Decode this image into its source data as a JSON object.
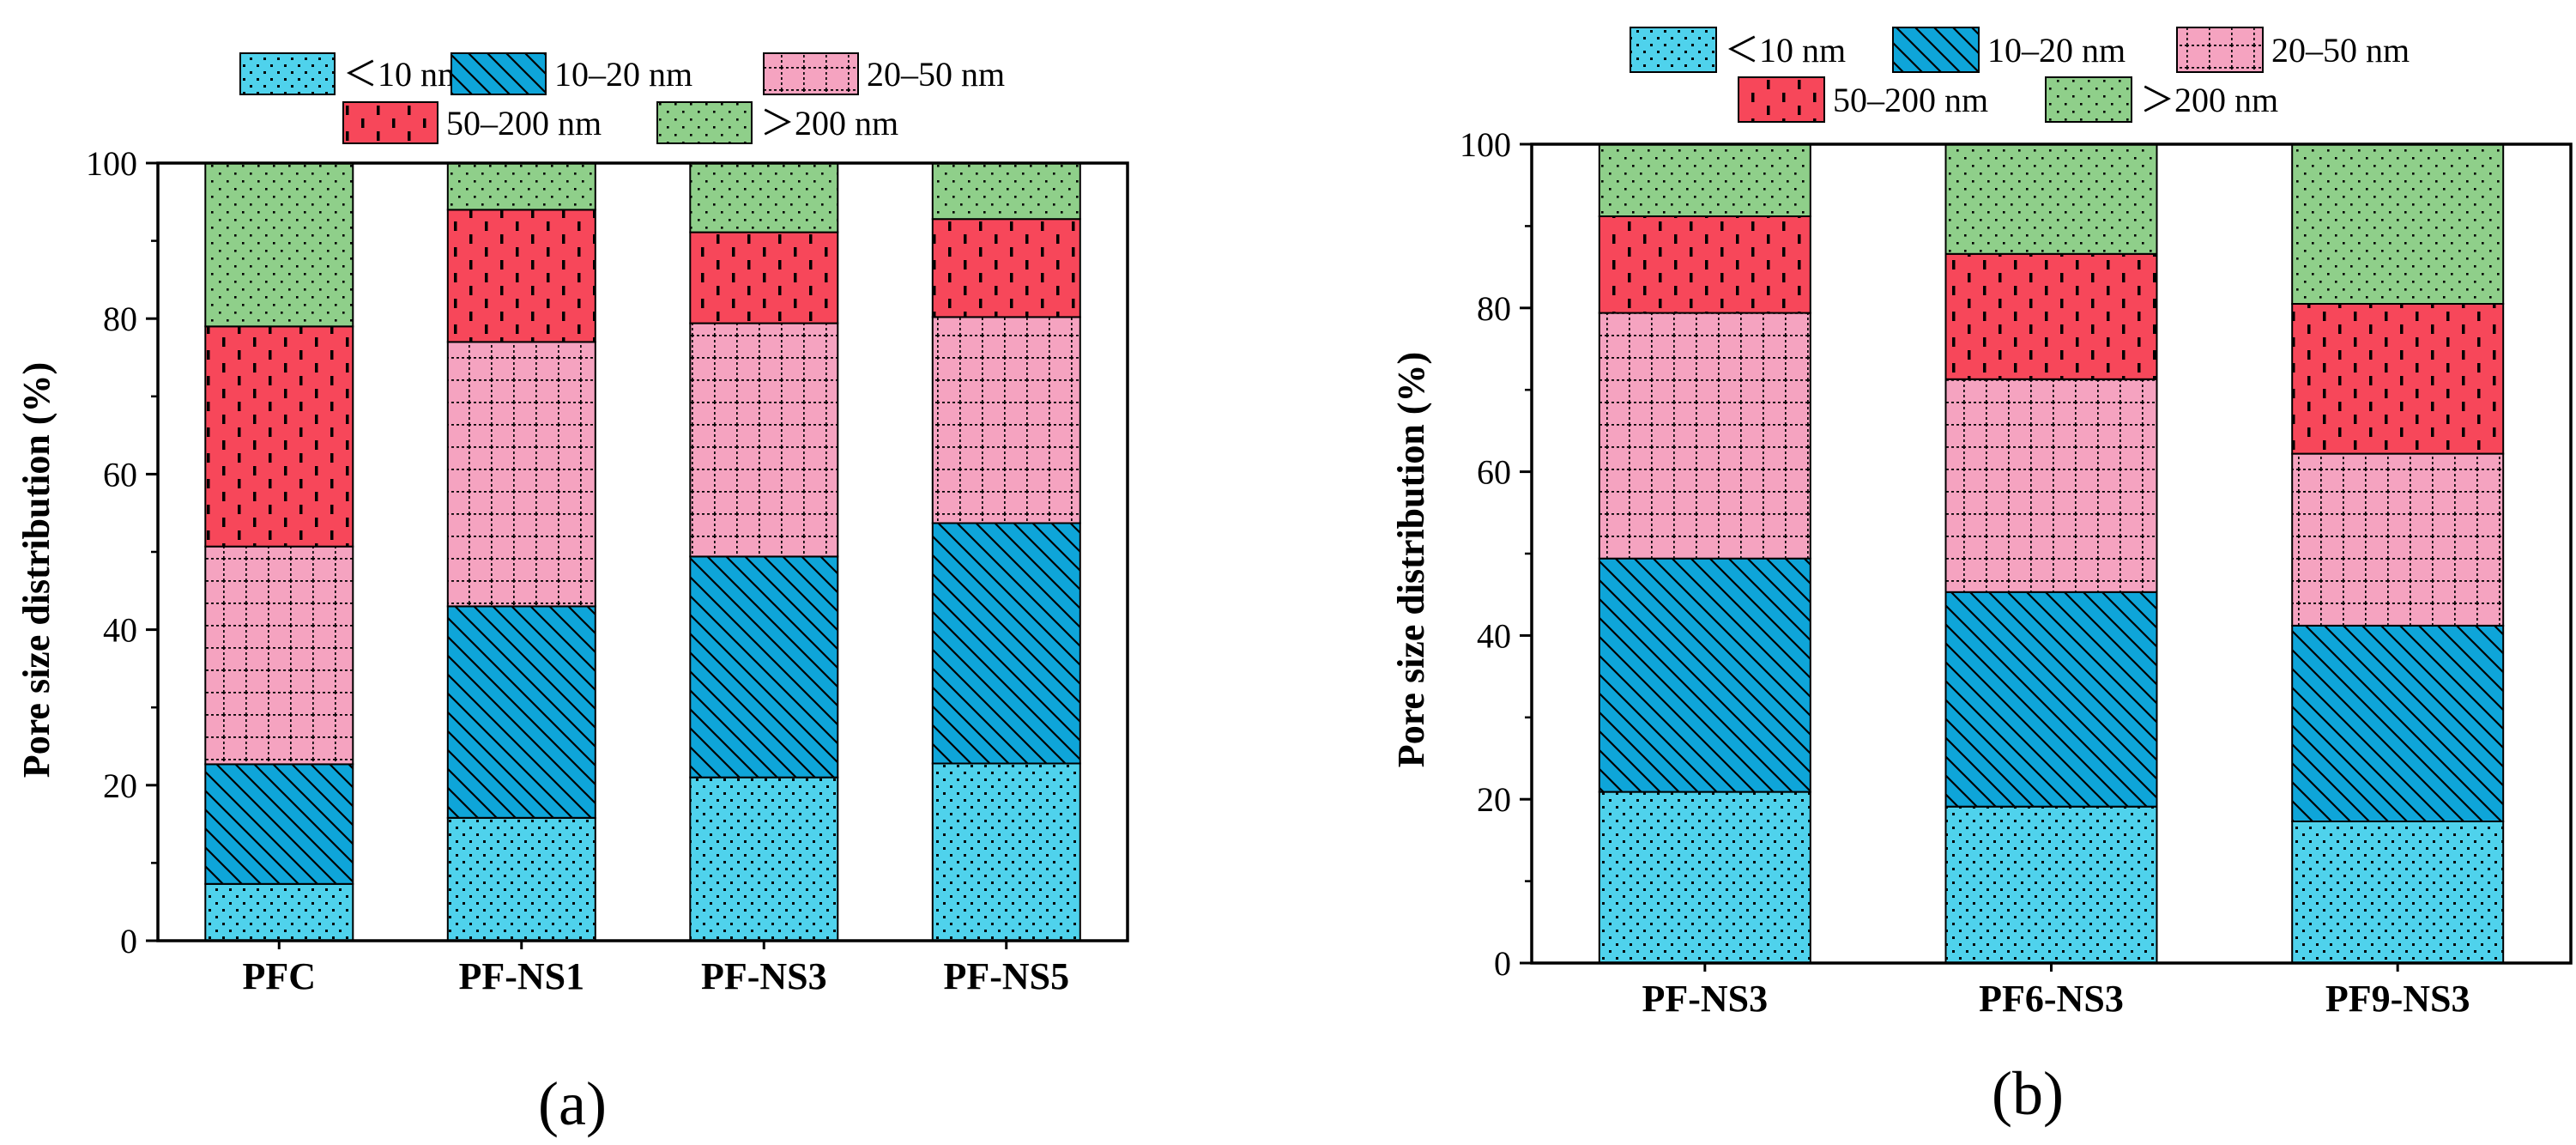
{
  "colors": {
    "lt10": "#4fd2ec",
    "d10_20": "#0ea5d9",
    "d20_50": "#f5a3c0",
    "d50_200": "#f7475a",
    "gt200": "#8fcf8a"
  },
  "chart_data": [
    {
      "type": "bar",
      "stacked": true,
      "panel_label": "(a)",
      "title": "",
      "xlabel": "",
      "ylabel": "Pore size distribution (%)",
      "ylim": [
        0,
        100
      ],
      "yticks": [
        "0",
        "20",
        "40",
        "60",
        "80",
        "100"
      ],
      "categories": [
        "PFC",
        "PF-NS1",
        "PF-NS3",
        "PF-NS5"
      ],
      "legend_position": "top",
      "series": [
        {
          "name": "<10 nm",
          "legend": "＜10 nm",
          "key": "lt10",
          "values": [
            7.3,
            15.8,
            21.0,
            22.8
          ]
        },
        {
          "name": "10–20 nm",
          "legend": "10–20 nm",
          "key": "d10_20",
          "values": [
            15.4,
            27.2,
            28.4,
            30.9
          ]
        },
        {
          "name": "20–50 nm",
          "legend": "20–50 nm",
          "key": "d20_50",
          "values": [
            28.0,
            34.0,
            30.0,
            26.5
          ]
        },
        {
          "name": "50–200 nm",
          "legend": "50–200 nm",
          "key": "d50_200",
          "values": [
            28.3,
            17.0,
            11.7,
            12.6
          ]
        },
        {
          "name": ">200 nm",
          "legend": "＞200 nm",
          "key": "gt200",
          "values": [
            21.0,
            6.0,
            8.9,
            7.2
          ]
        }
      ]
    },
    {
      "type": "bar",
      "stacked": true,
      "panel_label": "(b)",
      "title": "",
      "xlabel": "",
      "ylabel": "Pore size distribution (%)",
      "ylim": [
        0,
        100
      ],
      "yticks": [
        "0",
        "20",
        "40",
        "60",
        "80",
        "100"
      ],
      "categories": [
        "PF-NS3",
        "PF6-NS3",
        "PF9-NS3"
      ],
      "legend_position": "top",
      "series": [
        {
          "name": "<10 nm",
          "legend": "＜10 nm",
          "key": "lt10",
          "values": [
            20.9,
            19.1,
            17.3
          ]
        },
        {
          "name": "10–20 nm",
          "legend": "10–20 nm",
          "key": "d10_20",
          "values": [
            28.5,
            26.2,
            23.9
          ]
        },
        {
          "name": "20–50 nm",
          "legend": "20–50 nm",
          "key": "d20_50",
          "values": [
            30.0,
            26.0,
            21.0
          ]
        },
        {
          "name": "50–200 nm",
          "legend": "50–200 nm",
          "key": "d50_200",
          "values": [
            11.8,
            15.3,
            18.3
          ]
        },
        {
          "name": ">200 nm",
          "legend": "＞200 nm",
          "key": "gt200",
          "values": [
            8.8,
            13.4,
            19.5
          ]
        }
      ]
    }
  ]
}
